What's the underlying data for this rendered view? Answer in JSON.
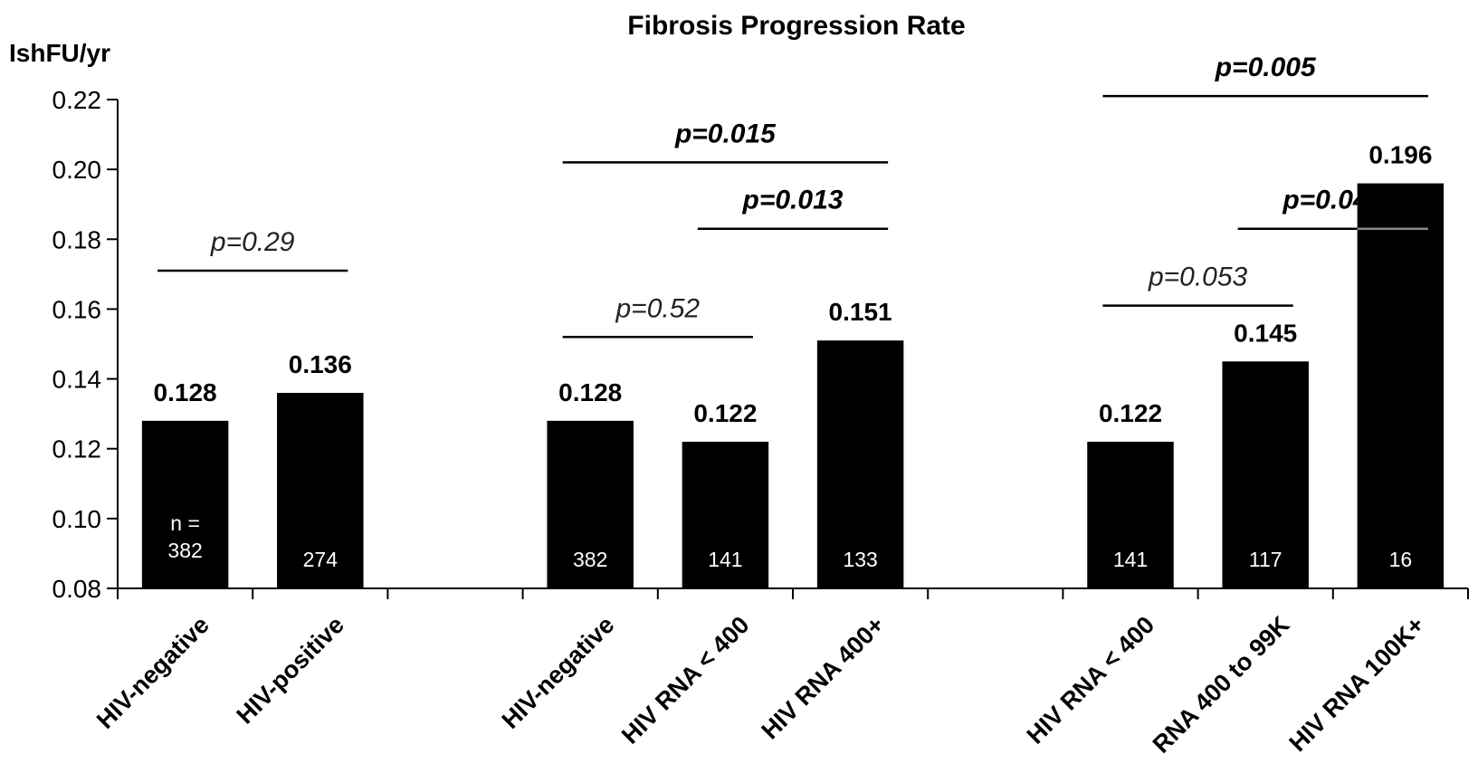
{
  "chart_data": {
    "type": "bar",
    "title": "Fibrosis Progression Rate",
    "ylabel": "IshFU/yr",
    "xlabel": "",
    "ylim": [
      0.08,
      0.22
    ],
    "yticks": [
      "0.08",
      "0.10",
      "0.12",
      "0.14",
      "0.16",
      "0.18",
      "0.20",
      "0.22"
    ],
    "grid": false,
    "bar_color": "#000000",
    "groups": [
      {
        "bars": [
          {
            "category": "HIV-negative",
            "value": 0.128,
            "value_label": "0.128",
            "n_label": "n =",
            "n": "382"
          },
          {
            "category": "HIV-positive",
            "value": 0.136,
            "value_label": "0.136",
            "n_label": "",
            "n": "274"
          }
        ]
      },
      {
        "bars": [
          {
            "category": "HIV-negative",
            "value": 0.128,
            "value_label": "0.128",
            "n_label": "",
            "n": "382"
          },
          {
            "category": "HIV RNA < 400",
            "value": 0.122,
            "value_label": "0.122",
            "n_label": "",
            "n": "141"
          },
          {
            "category": "HIV RNA 400+",
            "value": 0.151,
            "value_label": "0.151",
            "n_label": "",
            "n": "133"
          }
        ]
      },
      {
        "bars": [
          {
            "category": "HIV RNA < 400",
            "value": 0.122,
            "value_label": "0.122",
            "n_label": "",
            "n": "141"
          },
          {
            "category": "RNA 400 to 99K",
            "value": 0.145,
            "value_label": "0.145",
            "n_label": "",
            "n": "117"
          },
          {
            "category": "HIV RNA 100K+",
            "value": 0.196,
            "value_label": "0.196",
            "n_label": "",
            "n": "16"
          }
        ]
      }
    ],
    "comparisons": [
      {
        "label": "p=0.29",
        "from": [
          0,
          0
        ],
        "to": [
          0,
          1
        ],
        "y": 0.171,
        "bold": false
      },
      {
        "label": "p=0.52",
        "from": [
          1,
          0
        ],
        "to": [
          1,
          1
        ],
        "y": 0.152,
        "bold": false
      },
      {
        "label": "p=0.013",
        "from": [
          1,
          1
        ],
        "to": [
          1,
          2
        ],
        "y": 0.183,
        "bold": true
      },
      {
        "label": "p=0.015",
        "from": [
          1,
          0
        ],
        "to": [
          1,
          2
        ],
        "y": 0.202,
        "bold": true
      },
      {
        "label": "p=0.053",
        "from": [
          2,
          0
        ],
        "to": [
          2,
          1
        ],
        "y": 0.161,
        "bold": false
      },
      {
        "label": "p=0.044",
        "from": [
          2,
          1
        ],
        "to": [
          2,
          2
        ],
        "y": 0.183,
        "bold": true
      },
      {
        "label": "p=0.005",
        "from": [
          2,
          0
        ],
        "to": [
          2,
          2
        ],
        "y": 0.221,
        "bold": true
      }
    ]
  }
}
